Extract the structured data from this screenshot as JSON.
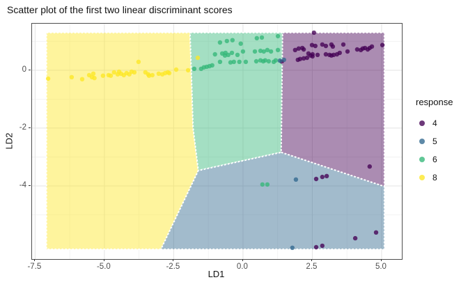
{
  "title": "Scatter plot of the first two linear discriminant scores",
  "legend": {
    "title": "response",
    "items": [
      {
        "label": "4",
        "color": "#440154"
      },
      {
        "label": "5",
        "color": "#31688E"
      },
      {
        "label": "6",
        "color": "#35B779"
      },
      {
        "label": "8",
        "color": "#FDE725"
      }
    ]
  },
  "chart_data": {
    "type": "scatter",
    "title": "Scatter plot of the first two linear discriminant scores",
    "xlabel": "LD1",
    "ylabel": "LD2",
    "xlim": [
      -7.61,
      5.73
    ],
    "ylim": [
      -6.53,
      1.61
    ],
    "x_ticks": [
      -7.5,
      -5.0,
      -2.5,
      0.0,
      2.5,
      5.0
    ],
    "x_tick_labels": [
      "-7.5",
      "-5.0",
      "-2.5",
      "0.0",
      "2.5",
      "5.0"
    ],
    "x_minor_ticks": [
      -6.25,
      -3.75,
      -1.25,
      1.25,
      3.75
    ],
    "y_ticks": [
      0,
      -2,
      -4
    ],
    "y_tick_labels": [
      "0",
      "-2",
      "-4"
    ],
    "y_minor_ticks": [
      1,
      -1,
      -3,
      -5
    ],
    "grid": true,
    "legend_position": "right",
    "legend_title": "response",
    "major_grid_color": "#e3e3e3",
    "minor_grid_color": "#f1f1f1",
    "region_fill_opacity": 0.45,
    "region_boundary_color": "#ffffff",
    "point_opacity": 0.78,
    "point_radius": 3.2,
    "decision_regions": [
      {
        "response": "8",
        "color": "#FDE725",
        "polygon": [
          [
            -7.09,
            1.3
          ],
          [
            -1.91,
            1.3
          ],
          [
            -1.8,
            -2.0
          ],
          [
            -1.61,
            -3.47
          ],
          [
            -2.96,
            -6.19
          ],
          [
            -7.09,
            -6.19
          ]
        ]
      },
      {
        "response": "6",
        "color": "#35B779",
        "polygon": [
          [
            -1.91,
            1.3
          ],
          [
            1.43,
            1.3
          ],
          [
            1.38,
            -2.84
          ],
          [
            -1.61,
            -3.47
          ],
          [
            -1.8,
            -2.0
          ]
        ]
      },
      {
        "response": "4",
        "color": "#440154",
        "polygon": [
          [
            1.43,
            1.3
          ],
          [
            5.1,
            1.3
          ],
          [
            5.1,
            -4.02
          ],
          [
            1.38,
            -2.84
          ]
        ]
      },
      {
        "response": "5",
        "color": "#31688E",
        "polygon": [
          [
            1.38,
            -2.84
          ],
          [
            5.1,
            -4.02
          ],
          [
            5.1,
            -6.19
          ],
          [
            -2.96,
            -6.19
          ],
          [
            -1.61,
            -3.47
          ]
        ]
      }
    ],
    "series": [
      {
        "name": "4",
        "color": "#440154",
        "points": [
          [
            1.4,
            0.3
          ],
          [
            1.88,
            0.7
          ],
          [
            2.01,
            0.75
          ],
          [
            2.14,
            0.77
          ],
          [
            2.19,
            0.72
          ],
          [
            1.98,
            0.36
          ],
          [
            2.06,
            0.39
          ],
          [
            2.19,
            0.41
          ],
          [
            2.31,
            0.43
          ],
          [
            2.44,
            0.51
          ],
          [
            2.51,
            0.48
          ],
          [
            2.56,
            1.3
          ],
          [
            2.49,
            0.87
          ],
          [
            2.61,
            0.84
          ],
          [
            2.86,
            0.89
          ],
          [
            2.99,
            0.84
          ],
          [
            3.19,
            0.89
          ],
          [
            3.24,
            0.82
          ],
          [
            3.62,
            0.89
          ],
          [
            2.36,
            0.58
          ],
          [
            2.51,
            0.55
          ],
          [
            2.69,
            0.53
          ],
          [
            2.99,
            0.55
          ],
          [
            3.12,
            0.53
          ],
          [
            3.19,
            0.51
          ],
          [
            3.27,
            0.53
          ],
          [
            3.39,
            0.55
          ],
          [
            3.49,
            0.6
          ],
          [
            3.77,
            0.65
          ],
          [
            4.12,
            0.72
          ],
          [
            4.25,
            0.7
          ],
          [
            4.32,
            0.75
          ],
          [
            4.4,
            0.77
          ],
          [
            4.5,
            0.72
          ],
          [
            4.57,
            0.77
          ],
          [
            4.65,
            0.82
          ],
          [
            5.03,
            0.87
          ],
          [
            2.64,
            -3.76
          ],
          [
            2.86,
            -3.69
          ],
          [
            3.02,
            -3.66
          ],
          [
            4.57,
            -3.33
          ],
          [
            2.64,
            -6.12
          ],
          [
            2.86,
            -6.07
          ],
          [
            4.05,
            -5.81
          ],
          [
            4.8,
            -5.61
          ]
        ]
      },
      {
        "name": "5",
        "color": "#31688E",
        "points": [
          [
            1.33,
            0.33
          ],
          [
            1.48,
            0.36
          ],
          [
            1.91,
            -3.78
          ],
          [
            1.78,
            -6.14
          ]
        ]
      },
      {
        "name": "6",
        "color": "#35B779",
        "points": [
          [
            -1.76,
            0.05
          ],
          [
            -1.51,
            0.05
          ],
          [
            -1.41,
            0.1
          ],
          [
            -1.31,
            0.12
          ],
          [
            -1.21,
            0.14
          ],
          [
            -1.11,
            0.17
          ],
          [
            -1.01,
            0.55
          ],
          [
            -0.83,
            0.96
          ],
          [
            -0.75,
            0.58
          ],
          [
            -0.63,
            0.6
          ],
          [
            -0.58,
            1.01
          ],
          [
            -0.4,
            0.6
          ],
          [
            -0.38,
            1.04
          ],
          [
            -0.08,
            0.92
          ],
          [
            0.5,
            1.11
          ],
          [
            0.68,
            1.13
          ],
          [
            1.26,
            1.18
          ],
          [
            0.0,
            0.65
          ],
          [
            0.43,
            0.65
          ],
          [
            0.63,
            0.67
          ],
          [
            0.75,
            0.65
          ],
          [
            0.88,
            0.7
          ],
          [
            1.01,
            0.65
          ],
          [
            1.26,
            0.7
          ],
          [
            -0.83,
            0.29
          ],
          [
            -0.65,
            0.51
          ],
          [
            -0.53,
            0.53
          ],
          [
            -0.45,
            0.27
          ],
          [
            -0.33,
            0.29
          ],
          [
            -0.2,
            0.53
          ],
          [
            -0.13,
            0.29
          ],
          [
            0.1,
            0.29
          ],
          [
            0.48,
            0.31
          ],
          [
            0.63,
            0.34
          ],
          [
            0.73,
            0.31
          ],
          [
            0.8,
            0.34
          ],
          [
            0.93,
            0.31
          ],
          [
            1.11,
            0.29
          ],
          [
            1.18,
            0.34
          ],
          [
            0.7,
            -3.95
          ],
          [
            0.88,
            -3.95
          ]
        ]
      },
      {
        "name": "8",
        "color": "#FDE725",
        "points": [
          [
            -7.03,
            -0.29
          ],
          [
            -6.18,
            -0.24
          ],
          [
            -5.8,
            -0.31
          ],
          [
            -5.55,
            -0.17
          ],
          [
            -5.45,
            -0.24
          ],
          [
            -5.4,
            -0.12
          ],
          [
            -5.36,
            -0.27
          ],
          [
            -5.05,
            -0.19
          ],
          [
            -4.85,
            -0.17
          ],
          [
            -4.77,
            -0.19
          ],
          [
            -4.65,
            -0.07
          ],
          [
            -4.52,
            -0.14
          ],
          [
            -4.47,
            -0.05
          ],
          [
            -4.4,
            -0.12
          ],
          [
            -4.3,
            -0.17
          ],
          [
            -4.2,
            -0.1
          ],
          [
            -4.1,
            -0.14
          ],
          [
            -4.02,
            -0.05
          ],
          [
            -3.92,
            -0.07
          ],
          [
            -3.77,
            0.29
          ],
          [
            -3.52,
            -0.07
          ],
          [
            -3.42,
            -0.14
          ],
          [
            -3.39,
            -0.19
          ],
          [
            -3.27,
            -0.17
          ],
          [
            -3.04,
            -0.12
          ],
          [
            -2.91,
            -0.14
          ],
          [
            -2.81,
            -0.1
          ],
          [
            -2.71,
            -0.07
          ],
          [
            -2.66,
            -0.1
          ],
          [
            -2.41,
            0.02
          ],
          [
            -1.98,
            0.0
          ],
          [
            -1.63,
            0.43
          ]
        ]
      }
    ]
  }
}
